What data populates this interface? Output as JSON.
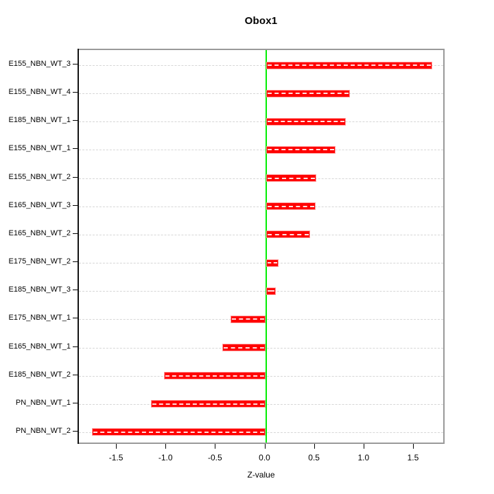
{
  "chart_data": {
    "type": "bar",
    "orientation": "horizontal",
    "title": "Obox1",
    "xlabel": "Z-value",
    "categories": [
      "E155_NBN_WT_3",
      "E155_NBN_WT_4",
      "E185_NBN_WT_1",
      "E155_NBN_WT_1",
      "E155_NBN_WT_2",
      "E165_NBN_WT_3",
      "E165_NBN_WT_2",
      "E175_NBN_WT_2",
      "E185_NBN_WT_3",
      "E175_NBN_WT_1",
      "E165_NBN_WT_1",
      "E185_NBN_WT_2",
      "PN_NBN_WT_1",
      "PN_NBN_WT_2"
    ],
    "values": [
      1.68,
      0.85,
      0.81,
      0.7,
      0.51,
      0.5,
      0.45,
      0.13,
      0.1,
      -0.36,
      -0.44,
      -1.03,
      -1.16,
      -1.76
    ],
    "x_ticks": [
      -1.5,
      -1.0,
      -0.5,
      0.0,
      0.5,
      1.0,
      1.5
    ],
    "x_tick_labels": [
      "-1.5",
      "-1.0",
      "-0.5",
      "0.0",
      "0.5",
      "1.0",
      "1.5"
    ],
    "xlim": [
      -1.89,
      1.82
    ],
    "grid": "horizontal dashed line per category",
    "zero_line_color": "#00ee00",
    "legend": "none",
    "colors": {
      "bar_fill": "#ff0000",
      "bar_edge": "#ff9999",
      "bar_inner_dash": "#ffffff",
      "gridline": "#d6d6d6",
      "box_border": "#999999",
      "axis_line": "#111111",
      "text": "#000000",
      "background": "#ffffff"
    }
  }
}
